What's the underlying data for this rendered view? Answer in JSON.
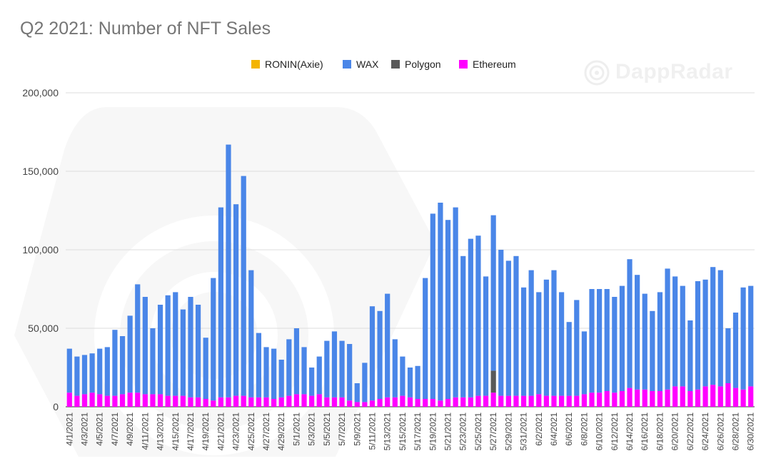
{
  "colors": {
    "ronin": "#f4b400",
    "wax": "#4a86e8",
    "polygon": "#595959",
    "ethereum": "#ff00ff",
    "grid": "#dddddd",
    "axis_text": "#444444"
  },
  "watermark": {
    "brand": "DappRadar",
    "icon": "dappradar-logo-icon"
  },
  "chart_data": {
    "type": "bar",
    "stacked": true,
    "title": "Q2 2021: Number of NFT Sales",
    "legend_position": "top",
    "grid": true,
    "ylim": [
      0,
      200000
    ],
    "y_ticks": [
      0,
      50000,
      100000,
      150000,
      200000
    ],
    "y_tick_labels": [
      "0",
      "50,000",
      "100,000",
      "150,000",
      "200,000"
    ],
    "x_tick_labels": [
      "4/1/2021",
      "4/3/2021",
      "4/5/2021",
      "4/7/2021",
      "4/9/2021",
      "4/11/2021",
      "4/13/2021",
      "4/15/2021",
      "4/17/2021",
      "4/19/2021",
      "4/21/2021",
      "4/23/2021",
      "4/25/2021",
      "4/27/2021",
      "4/29/2021",
      "5/1/2021",
      "5/3/2021",
      "5/5/2021",
      "5/7/2021",
      "5/9/2021",
      "5/11/2021",
      "5/13/2021",
      "5/15/2021",
      "5/17/2021",
      "5/19/2021",
      "5/21/2021",
      "5/23/2021",
      "5/25/2021",
      "5/27/2021",
      "5/29/2021",
      "5/31/2021",
      "6/2/2021",
      "6/4/2021",
      "6/6/2021",
      "6/8/2021",
      "6/10/2021",
      "6/12/2021",
      "6/14/2021",
      "6/16/2021",
      "6/18/2021",
      "6/20/2021",
      "6/22/2021",
      "6/24/2021",
      "6/26/2021",
      "6/28/2021",
      "6/30/2021"
    ],
    "categories": [
      "4/1/2021",
      "4/2/2021",
      "4/3/2021",
      "4/4/2021",
      "4/5/2021",
      "4/6/2021",
      "4/7/2021",
      "4/8/2021",
      "4/9/2021",
      "4/10/2021",
      "4/11/2021",
      "4/12/2021",
      "4/13/2021",
      "4/14/2021",
      "4/15/2021",
      "4/16/2021",
      "4/17/2021",
      "4/18/2021",
      "4/19/2021",
      "4/20/2021",
      "4/21/2021",
      "4/22/2021",
      "4/23/2021",
      "4/24/2021",
      "4/25/2021",
      "4/26/2021",
      "4/27/2021",
      "4/28/2021",
      "4/29/2021",
      "4/30/2021",
      "5/1/2021",
      "5/2/2021",
      "5/3/2021",
      "5/4/2021",
      "5/5/2021",
      "5/6/2021",
      "5/7/2021",
      "5/8/2021",
      "5/9/2021",
      "5/10/2021",
      "5/11/2021",
      "5/12/2021",
      "5/13/2021",
      "5/14/2021",
      "5/15/2021",
      "5/16/2021",
      "5/17/2021",
      "5/18/2021",
      "5/19/2021",
      "5/20/2021",
      "5/21/2021",
      "5/22/2021",
      "5/23/2021",
      "5/24/2021",
      "5/25/2021",
      "5/26/2021",
      "5/27/2021",
      "5/28/2021",
      "5/29/2021",
      "5/30/2021",
      "5/31/2021",
      "6/1/2021",
      "6/2/2021",
      "6/3/2021",
      "6/4/2021",
      "6/5/2021",
      "6/6/2021",
      "6/7/2021",
      "6/8/2021",
      "6/9/2021",
      "6/10/2021",
      "6/11/2021",
      "6/12/2021",
      "6/13/2021",
      "6/14/2021",
      "6/15/2021",
      "6/16/2021",
      "6/17/2021",
      "6/18/2021",
      "6/19/2021",
      "6/20/2021",
      "6/21/2021",
      "6/22/2021",
      "6/23/2021",
      "6/24/2021",
      "6/25/2021",
      "6/26/2021",
      "6/27/2021",
      "6/28/2021",
      "6/29/2021",
      "6/30/2021"
    ],
    "series": [
      {
        "name": "Ethereum",
        "key": "ethereum",
        "values": [
          9000,
          7000,
          8000,
          9000,
          8000,
          7000,
          7000,
          8000,
          9000,
          9000,
          8000,
          8000,
          8000,
          7000,
          7000,
          7000,
          6000,
          6000,
          5000,
          4000,
          6000,
          6000,
          7000,
          7000,
          6000,
          6000,
          6000,
          5000,
          6000,
          7000,
          8000,
          8000,
          7000,
          8000,
          6000,
          6000,
          6000,
          4000,
          3000,
          3000,
          4000,
          5000,
          6000,
          6000,
          7000,
          6000,
          5000,
          5000,
          5000,
          4000,
          5000,
          6000,
          6000,
          6000,
          7000,
          7000,
          9000,
          7000,
          7000,
          7000,
          7000,
          7000,
          8000,
          7000,
          7000,
          7000,
          7000,
          7000,
          8000,
          9000,
          9000,
          10000,
          9000,
          10000,
          12000,
          11000,
          11000,
          10000,
          10000,
          11000,
          13000,
          13000,
          10000,
          11000,
          13000,
          14000,
          13000,
          15000,
          12000,
          11000,
          13000
        ]
      },
      {
        "name": "Polygon",
        "key": "polygon",
        "values": [
          0,
          0,
          0,
          0,
          0,
          0,
          0,
          0,
          0,
          0,
          0,
          0,
          0,
          0,
          0,
          0,
          0,
          0,
          0,
          0,
          0,
          0,
          0,
          0,
          0,
          0,
          0,
          0,
          0,
          0,
          0,
          0,
          0,
          0,
          0,
          0,
          0,
          0,
          0,
          0,
          0,
          0,
          0,
          0,
          0,
          0,
          0,
          0,
          0,
          0,
          0,
          0,
          0,
          0,
          0,
          0,
          14000,
          0,
          0,
          0,
          0,
          0,
          0,
          0,
          0,
          0,
          0,
          0,
          0,
          0,
          0,
          0,
          0,
          0,
          0,
          0,
          0,
          0,
          0,
          0,
          0,
          0,
          0,
          0,
          0,
          0,
          0,
          0,
          0,
          0,
          0
        ]
      },
      {
        "name": "WAX",
        "key": "wax",
        "values": [
          28000,
          25000,
          25000,
          25000,
          29000,
          31000,
          42000,
          37000,
          49000,
          69000,
          62000,
          42000,
          57000,
          64000,
          66000,
          55000,
          64000,
          59000,
          39000,
          78000,
          121000,
          161000,
          122000,
          140000,
          81000,
          41000,
          32000,
          32000,
          24000,
          36000,
          42000,
          30000,
          18000,
          24000,
          36000,
          42000,
          36000,
          36000,
          12000,
          25000,
          60000,
          56000,
          66000,
          37000,
          25000,
          19000,
          21000,
          77000,
          118000,
          126000,
          114000,
          121000,
          90000,
          101000,
          102000,
          76000,
          99000,
          93000,
          86000,
          89000,
          69000,
          80000,
          65000,
          74000,
          80000,
          66000,
          47000,
          61000,
          40000,
          66000,
          66000,
          65000,
          61000,
          67000,
          82000,
          73000,
          61000,
          51000,
          63000,
          77000,
          70000,
          64000,
          45000,
          69000,
          68000,
          75000,
          74000,
          35000,
          48000,
          65000,
          64000
        ]
      },
      {
        "name": "RONIN(Axie)",
        "key": "ronin",
        "values": [
          0,
          0,
          0,
          0,
          0,
          0,
          0,
          0,
          0,
          0,
          0,
          0,
          0,
          0,
          0,
          0,
          0,
          0,
          0,
          0,
          0,
          0,
          0,
          0,
          0,
          0,
          0,
          0,
          0,
          0,
          0,
          0,
          0,
          0,
          0,
          0,
          0,
          0,
          0,
          0,
          0,
          0,
          0,
          0,
          0,
          0,
          0,
          0,
          0,
          0,
          0,
          0,
          0,
          0,
          0,
          0,
          0,
          0,
          0,
          0,
          0,
          0,
          0,
          0,
          0,
          0,
          0,
          0,
          0,
          0,
          0,
          0,
          0,
          0,
          0,
          0,
          0,
          0,
          0,
          0,
          0,
          0,
          0,
          0,
          0,
          0,
          0,
          0,
          0,
          0,
          0
        ]
      }
    ]
  }
}
